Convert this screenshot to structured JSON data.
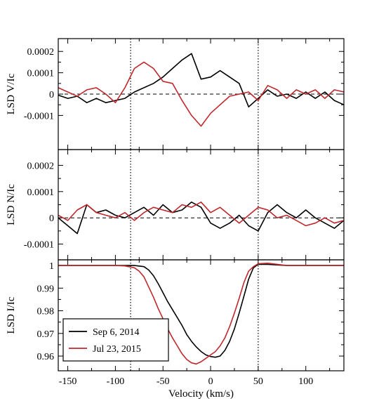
{
  "chart_data": {
    "type": "line",
    "xlabel": "Velocity (km/s)",
    "xlim": [
      -160,
      140
    ],
    "x_ticks": [
      -150,
      -100,
      -50,
      0,
      50,
      100
    ],
    "x_tick_labels": [
      "-150",
      "-100",
      "-50",
      "0",
      "50",
      "100"
    ],
    "reference_lines": [
      -84,
      50
    ],
    "legend": {
      "placement": "bottom-left",
      "entries": [
        {
          "label": "Sep 6, 2014",
          "color": "#000000"
        },
        {
          "label": "Jul 23, 2015",
          "color": "#c0282d"
        }
      ]
    },
    "panels": [
      {
        "id": "V",
        "ylabel": "LSD V/Ic",
        "ylim": [
          -0.00026,
          0.00026
        ],
        "y_ticks": [
          0.0002,
          0.0001,
          0,
          -0.0001
        ],
        "y_tick_labels": [
          "0.0002",
          "0.0001",
          "0",
          "-0.0001"
        ],
        "zero_line": true,
        "series": [
          {
            "label": "Sep 6, 2014",
            "color": "#000000",
            "x": [
              -160,
              -150,
              -140,
              -130,
              -120,
              -110,
              -100,
              -90,
              -80,
              -70,
              -60,
              -50,
              -40,
              -30,
              -20,
              -10,
              0,
              10,
              20,
              30,
              40,
              50,
              60,
              70,
              80,
              90,
              100,
              110,
              120,
              130,
              140
            ],
            "y": [
              -5e-06,
              -2e-05,
              -1e-05,
              -4e-05,
              -2e-05,
              -4e-05,
              -3e-05,
              -2e-05,
              1e-05,
              3e-05,
              5e-05,
              8e-05,
              0.00012,
              0.00016,
              0.00019,
              7e-05,
              8e-05,
              0.00011,
              8e-05,
              5e-05,
              -6e-05,
              -2e-05,
              2e-05,
              -1e-05,
              0,
              -2e-05,
              1e-05,
              -2e-05,
              1e-05,
              -3e-05,
              -5e-05
            ]
          },
          {
            "label": "Jul 23, 2015",
            "color": "#c0282d",
            "x": [
              -160,
              -150,
              -140,
              -130,
              -120,
              -110,
              -100,
              -90,
              -80,
              -70,
              -60,
              -50,
              -40,
              -30,
              -20,
              -10,
              0,
              10,
              20,
              30,
              40,
              50,
              60,
              70,
              80,
              90,
              100,
              110,
              120,
              130,
              140
            ],
            "y": [
              3e-05,
              1e-05,
              -1e-05,
              2e-05,
              3e-05,
              0,
              -4e-05,
              3e-05,
              0.00012,
              0.00015,
              0.00012,
              6e-05,
              5e-05,
              -3e-05,
              -0.0001,
              -0.00015,
              -9e-05,
              -5e-05,
              -1e-05,
              0,
              1e-05,
              -3e-05,
              4e-05,
              2e-05,
              -2e-05,
              2e-05,
              0,
              2e-05,
              -2e-05,
              2e-05,
              1e-05
            ]
          }
        ]
      },
      {
        "id": "N",
        "ylabel": "LSD N/Ic",
        "ylim": [
          -0.00016,
          0.00026
        ],
        "y_ticks": [
          0.0002,
          0.0001,
          0,
          -0.0001
        ],
        "y_tick_labels": [
          "0.0002",
          "0.0001",
          "0",
          "-0.0001"
        ],
        "zero_line": true,
        "series": [
          {
            "label": "Sep 6, 2014",
            "color": "#000000",
            "x": [
              -160,
              -150,
              -140,
              -130,
              -120,
              -110,
              -100,
              -90,
              -80,
              -70,
              -60,
              -50,
              -40,
              -30,
              -20,
              -10,
              0,
              10,
              20,
              30,
              40,
              50,
              60,
              70,
              80,
              90,
              100,
              110,
              120,
              130,
              140
            ],
            "y": [
              0,
              -3e-05,
              -6e-05,
              5e-05,
              2e-05,
              3e-05,
              1e-05,
              0,
              2e-05,
              4e-05,
              1e-05,
              5e-05,
              2e-05,
              3e-05,
              6e-05,
              4e-05,
              -2e-05,
              -4e-05,
              -2e-05,
              1e-05,
              -3e-05,
              -5e-05,
              2e-05,
              5e-05,
              2e-05,
              0,
              3e-05,
              0,
              -2e-05,
              -4e-05,
              -1e-05
            ]
          },
          {
            "label": "Jul 23, 2015",
            "color": "#c0282d",
            "x": [
              -160,
              -150,
              -140,
              -130,
              -120,
              -110,
              -100,
              -90,
              -80,
              -70,
              -60,
              -50,
              -40,
              -30,
              -20,
              -10,
              0,
              10,
              20,
              30,
              40,
              50,
              60,
              70,
              80,
              90,
              100,
              110,
              120,
              130,
              140
            ],
            "y": [
              1e-05,
              -1e-05,
              3e-05,
              5e-05,
              2e-05,
              1e-05,
              0,
              2e-05,
              -1e-05,
              2e-05,
              4e-05,
              3e-05,
              2e-05,
              5e-05,
              4e-05,
              6e-05,
              2e-05,
              4e-05,
              1e-05,
              -2e-05,
              1e-05,
              4e-05,
              3e-05,
              0,
              1e-05,
              -1e-05,
              -3e-05,
              -2e-05,
              0,
              -2e-05,
              -1e-05
            ]
          }
        ]
      },
      {
        "id": "I",
        "ylabel": "LSD I/Ic",
        "ylim": [
          0.9535,
          1.0025
        ],
        "y_ticks": [
          1.0,
          0.99,
          0.98,
          0.97,
          0.96
        ],
        "y_tick_labels": [
          "1",
          "0.99",
          "0.98",
          "0.97",
          "0.96"
        ],
        "zero_line": false,
        "series": [
          {
            "label": "Sep 6, 2014",
            "color": "#000000",
            "x": [
              -160,
              -140,
              -120,
              -100,
              -80,
              -70,
              -65,
              -60,
              -55,
              -50,
              -45,
              -40,
              -35,
              -30,
              -25,
              -20,
              -15,
              -10,
              -5,
              0,
              5,
              10,
              15,
              20,
              25,
              30,
              35,
              40,
              45,
              50,
              60,
              80,
              100,
              120,
              140
            ],
            "y": [
              1.0,
              1.0,
              1.0,
              1.0,
              1.0,
              0.9995,
              0.998,
              0.9955,
              0.992,
              0.988,
              0.984,
              0.9805,
              0.977,
              0.9735,
              0.9695,
              0.9665,
              0.964,
              0.962,
              0.9605,
              0.9598,
              0.9595,
              0.96,
              0.9625,
              0.9665,
              0.972,
              0.979,
              0.9865,
              0.994,
              0.999,
              1.0005,
              1.0005,
              1.0,
              1.0,
              1.0,
              1.0
            ]
          },
          {
            "label": "Jul 23, 2015",
            "color": "#c0282d",
            "x": [
              -160,
              -140,
              -120,
              -100,
              -90,
              -80,
              -75,
              -70,
              -65,
              -60,
              -55,
              -50,
              -45,
              -40,
              -35,
              -30,
              -25,
              -20,
              -15,
              -10,
              -5,
              0,
              5,
              10,
              15,
              20,
              25,
              30,
              35,
              40,
              45,
              50,
              60,
              80,
              100,
              120,
              140
            ],
            "y": [
              1.0,
              1.0,
              1.0,
              1.0,
              0.9998,
              0.999,
              0.9975,
              0.995,
              0.9905,
              0.986,
              0.981,
              0.9765,
              0.972,
              0.968,
              0.9645,
              0.961,
              0.9585,
              0.957,
              0.9565,
              0.9575,
              0.959,
              0.9605,
              0.962,
              0.9645,
              0.968,
              0.973,
              0.979,
              0.9855,
              0.9925,
              0.9975,
              0.9995,
              1.0008,
              1.001,
              1.0,
              1.0,
              1.0,
              1.0
            ]
          }
        ]
      }
    ]
  }
}
